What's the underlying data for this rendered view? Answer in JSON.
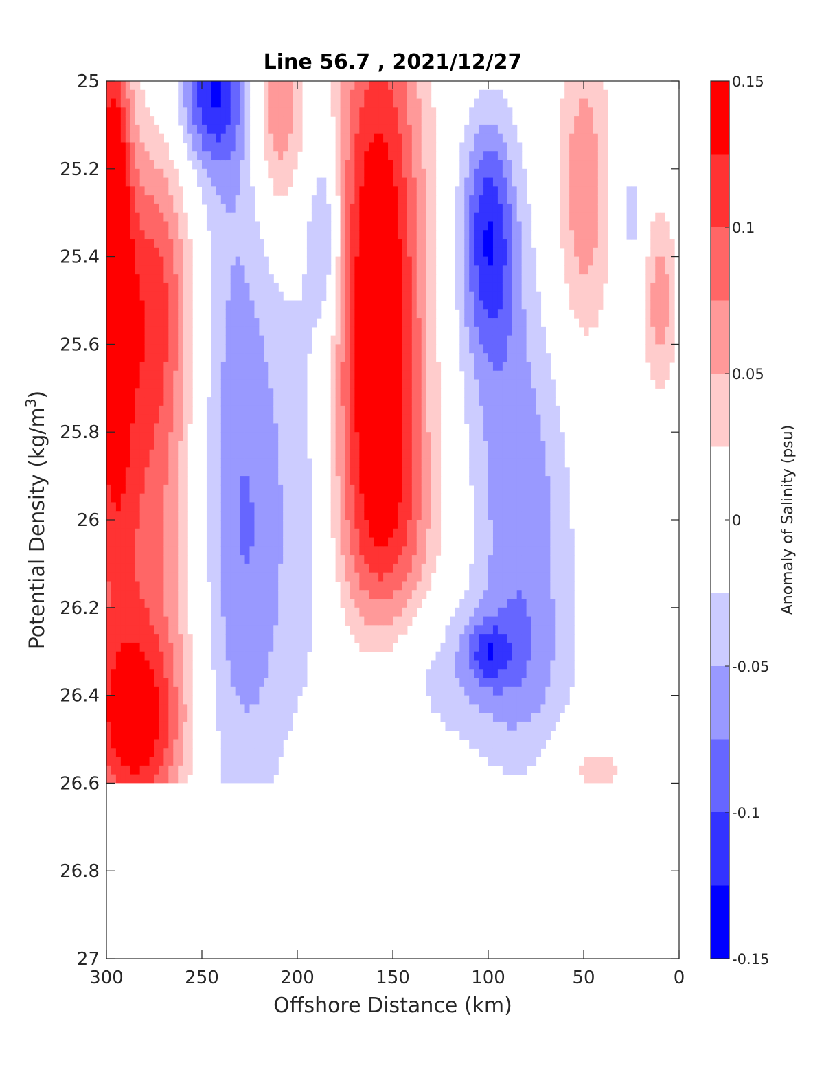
{
  "chart_data": {
    "type": "heatmap",
    "title": "Line 56.7 , 2021/12/27",
    "xlabel": "Offshore Distance (km)",
    "ylabel_main": "Potential Density (kg/m",
    "ylabel_sup": "3",
    "ylabel_end": ")",
    "colorbar_label": "Anomaly of Salinity (psu)",
    "x_reversed": true,
    "xlim": [
      0,
      300
    ],
    "ylim": [
      25,
      27
    ],
    "y_reversed": true,
    "x_ticks": [
      300,
      250,
      200,
      150,
      100,
      50,
      0
    ],
    "x_tick_labels": [
      "300",
      "250",
      "200",
      "150",
      "100",
      "50",
      "0"
    ],
    "y_ticks": [
      25,
      25.2,
      25.4,
      25.6,
      25.8,
      26,
      26.2,
      26.4,
      26.6,
      26.8,
      27
    ],
    "y_tick_labels": [
      "25",
      "25.2",
      "25.4",
      "25.6",
      "25.8",
      "26",
      "26.2",
      "26.4",
      "26.6",
      "26.8",
      "27"
    ],
    "colorbar": {
      "range": [
        -0.15,
        0.15
      ],
      "ticks": [
        0.15,
        0.1,
        0.05,
        0,
        -0.05,
        -0.1,
        -0.15
      ],
      "tick_labels": [
        "0.15",
        "0.1",
        "0.05",
        "0",
        "-0.05",
        "-0.1",
        "-0.15"
      ],
      "levels": [
        {
          "from": 0.125,
          "to": 0.15,
          "color": "#ff0000"
        },
        {
          "from": 0.1,
          "to": 0.125,
          "color": "#ff3333"
        },
        {
          "from": 0.075,
          "to": 0.1,
          "color": "#ff6666"
        },
        {
          "from": 0.05,
          "to": 0.075,
          "color": "#ff9999"
        },
        {
          "from": 0.025,
          "to": 0.05,
          "color": "#ffcccc"
        },
        {
          "from": -0.025,
          "to": 0.025,
          "color": "#ffffff"
        },
        {
          "from": -0.05,
          "to": -0.025,
          "color": "#ccccff"
        },
        {
          "from": -0.075,
          "to": -0.05,
          "color": "#9999ff"
        },
        {
          "from": -0.1,
          "to": -0.075,
          "color": "#6666ff"
        },
        {
          "from": -0.125,
          "to": -0.1,
          "color": "#3333ff"
        },
        {
          "from": -0.15,
          "to": -0.125,
          "color": "#0000ff"
        }
      ]
    },
    "cores": [
      {
        "x": 297,
        "y": 25.35,
        "sx": 7,
        "sy": 0.4,
        "a": 0.16
      },
      {
        "x": 275,
        "y": 25.48,
        "sx": 15,
        "sy": 0.25,
        "a": 0.1
      },
      {
        "x": 285,
        "y": 26.48,
        "sx": 18,
        "sy": 0.16,
        "a": 0.12
      },
      {
        "x": 285,
        "y": 26.15,
        "sx": 25,
        "sy": 0.3,
        "a": 0.06
      },
      {
        "x": 283,
        "y": 25.85,
        "sx": 20,
        "sy": 0.3,
        "a": 0.035
      },
      {
        "x": 245,
        "y": 25.03,
        "sx": 12,
        "sy": 0.12,
        "a": -0.1
      },
      {
        "x": 232,
        "y": 25.6,
        "sx": 18,
        "sy": 0.8,
        "a": -0.05
      },
      {
        "x": 225,
        "y": 26.1,
        "sx": 18,
        "sy": 0.35,
        "a": -0.04
      },
      {
        "x": 210,
        "y": 25.05,
        "sx": 10,
        "sy": 0.2,
        "a": 0.09
      },
      {
        "x": 185,
        "y": 25.35,
        "sx": 6,
        "sy": 0.15,
        "a": -0.06
      },
      {
        "x": 190,
        "y": 25.7,
        "sx": 12,
        "sy": 0.5,
        "a": -0.035
      },
      {
        "x": 158,
        "y": 25.35,
        "sx": 17,
        "sy": 0.45,
        "a": 0.14
      },
      {
        "x": 158,
        "y": 25.85,
        "sx": 18,
        "sy": 0.3,
        "a": 0.07
      },
      {
        "x": 150,
        "y": 26.05,
        "sx": 18,
        "sy": 0.15,
        "a": 0.035
      },
      {
        "x": 100,
        "y": 25.33,
        "sx": 10,
        "sy": 0.18,
        "a": -0.09
      },
      {
        "x": 98,
        "y": 25.5,
        "sx": 14,
        "sy": 0.25,
        "a": -0.04
      },
      {
        "x": 82,
        "y": 26.05,
        "sx": 18,
        "sy": 0.35,
        "a": -0.07
      },
      {
        "x": 115,
        "y": 26.35,
        "sx": 35,
        "sy": 0.12,
        "a": -0.04
      },
      {
        "x": 100,
        "y": 26.3,
        "sx": 8,
        "sy": 0.05,
        "a": -0.06
      },
      {
        "x": 50,
        "y": 25.25,
        "sx": 10,
        "sy": 0.25,
        "a": 0.07
      },
      {
        "x": 10,
        "y": 25.5,
        "sx": 6,
        "sy": 0.15,
        "a": 0.065
      },
      {
        "x": 25,
        "y": 25.3,
        "sx": 5,
        "sy": 0.1,
        "a": -0.035
      },
      {
        "x": 45,
        "y": 26.57,
        "sx": 15,
        "sy": 0.06,
        "a": 0.035
      }
    ],
    "masked_regions": [
      {
        "x_from": 300,
        "x_to": 0,
        "y_from": 26.6,
        "y_to": 27
      }
    ],
    "grid": false,
    "legend": "colorbar-right"
  }
}
